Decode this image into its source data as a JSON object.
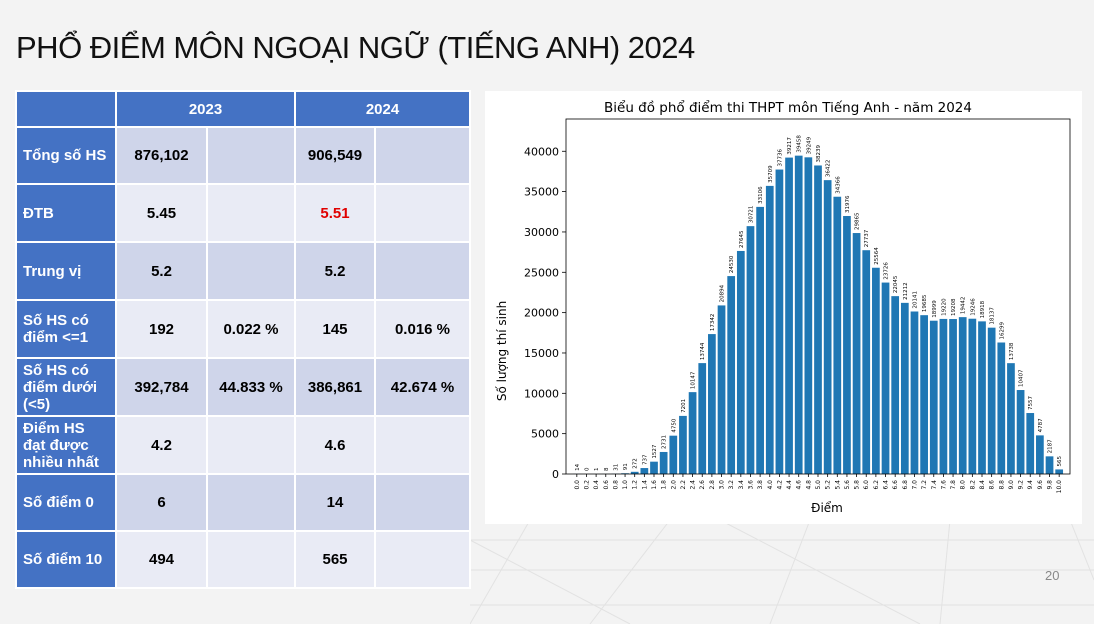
{
  "title": "PHỔ ĐIỂM MÔN NGOẠI NGỮ (TIẾNG ANH) 2024",
  "table": {
    "headers": [
      "",
      "2023",
      "2024"
    ],
    "rows": [
      {
        "label": "Tổng số HS",
        "v2023": "876,102",
        "p2023": "",
        "v2024": "906,549",
        "p2024": "",
        "highlight": false
      },
      {
        "label": "ĐTB",
        "v2023": "5.45",
        "p2023": "",
        "v2024": "5.51",
        "p2024": "",
        "highlight": true
      },
      {
        "label": "Trung vị",
        "v2023": "5.2",
        "p2023": "",
        "v2024": "5.2",
        "p2024": "",
        "highlight": false
      },
      {
        "label": "Số HS có điểm <=1",
        "v2023": "192",
        "p2023": "0.022 %",
        "v2024": "145",
        "p2024": "0.016 %",
        "highlight": false
      },
      {
        "label": "Số HS có điểm dưới (<5)",
        "v2023": "392,784",
        "p2023": "44.833 %",
        "v2024": "386,861",
        "p2024": "42.674 %",
        "highlight": false
      },
      {
        "label": "Điểm HS đạt được nhiều nhất",
        "v2023": "4.2",
        "p2023": "",
        "v2024": "4.6",
        "p2024": "",
        "highlight": false
      },
      {
        "label": "Số điểm 0",
        "v2023": "6",
        "p2023": "",
        "v2024": "14",
        "p2024": "",
        "highlight": false
      },
      {
        "label": "Số điểm 10",
        "v2023": "494",
        "p2023": "",
        "v2024": "565",
        "p2024": "",
        "highlight": false
      }
    ]
  },
  "page_number": "20",
  "colors": {
    "header_blue": "#4472c4",
    "bar_blue": "#1f77b4",
    "highlight_red": "#e00000"
  },
  "chart_data": {
    "type": "bar",
    "title": "Biểu đồ phổ điểm thi THPT môn Tiếng Anh - năm 2024",
    "xlabel": "Điểm",
    "ylabel": "Số lượng thí sinh",
    "ylim": [
      0,
      44000
    ],
    "yticks": [
      0,
      5000,
      10000,
      15000,
      20000,
      25000,
      30000,
      35000,
      40000
    ],
    "categories": [
      "0.0",
      "0.2",
      "0.4",
      "0.6",
      "0.8",
      "1.0",
      "1.2",
      "1.4",
      "1.6",
      "1.8",
      "2.0",
      "2.2",
      "2.4",
      "2.6",
      "2.8",
      "3.0",
      "3.2",
      "3.4",
      "3.6",
      "3.8",
      "4.0",
      "4.2",
      "4.4",
      "4.6",
      "4.8",
      "5.0",
      "5.2",
      "5.4",
      "5.6",
      "5.8",
      "6.0",
      "6.2",
      "6.4",
      "6.6",
      "6.8",
      "7.0",
      "7.2",
      "7.4",
      "7.6",
      "7.8",
      "8.0",
      "8.2",
      "8.4",
      "8.6",
      "8.8",
      "9.0",
      "9.2",
      "9.4",
      "9.6",
      "9.8",
      "10.0"
    ],
    "values": [
      14,
      0,
      1,
      8,
      31,
      91,
      272,
      737,
      1527,
      2731,
      4750,
      7201,
      10147,
      13744,
      17342,
      20894,
      24530,
      27645,
      30721,
      33106,
      35709,
      37736,
      39217,
      39458,
      39249,
      38239,
      36422,
      34366,
      31976,
      29865,
      27737,
      25564,
      23726,
      22045,
      21212,
      20141,
      19685,
      18999,
      19220,
      19208,
      19442,
      19246,
      18918,
      18137,
      16299,
      13738,
      10407,
      7557,
      4787,
      2187,
      565
    ],
    "grid": false,
    "legend": "none"
  }
}
